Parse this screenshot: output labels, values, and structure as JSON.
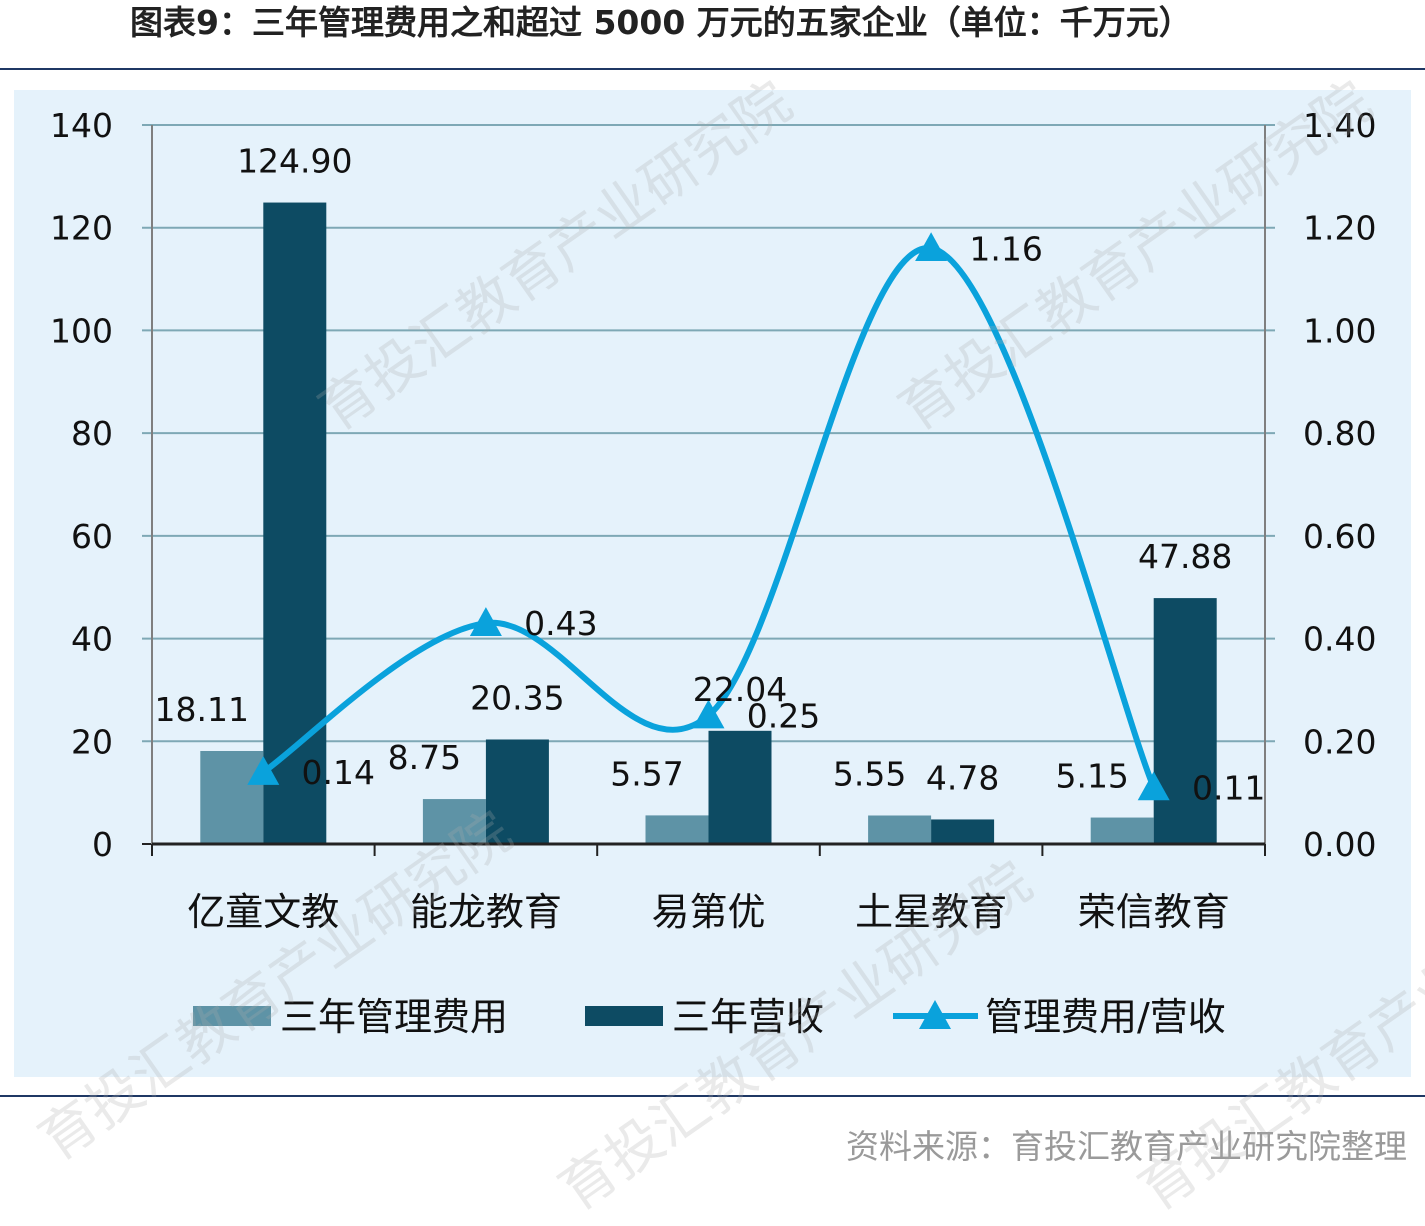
{
  "title": "图表9：三年管理费用之和超过 5000 万元的五家企业（单位：千万元）",
  "source": "资料来源：育投汇教育产业研究院整理",
  "watermark": "育投汇教育产业研究院",
  "colors": {
    "background": "#e5f2fb",
    "grid": "#7ea8b5",
    "bar_fee": "#5e93a6",
    "bar_revenue": "#0d4b63",
    "line_ratio": "#0aa2dc",
    "text": "#111111"
  },
  "chart_data": {
    "type": "bar",
    "categories": [
      "亿童文教",
      "能龙教育",
      "易第优",
      "土星教育",
      "荣信教育"
    ],
    "series": [
      {
        "name": "三年管理费用",
        "type": "bar",
        "axis": "left",
        "values": [
          18.11,
          8.75,
          5.57,
          5.55,
          5.15
        ],
        "labels": [
          "18.11",
          "8.75",
          "5.57",
          "5.55",
          "5.15"
        ]
      },
      {
        "name": "三年营收",
        "type": "bar",
        "axis": "left",
        "values": [
          124.9,
          20.35,
          22.04,
          4.78,
          47.88
        ],
        "labels": [
          "124.90",
          "20.35",
          "22.04",
          "4.78",
          "47.88"
        ]
      },
      {
        "name": "管理费用/营收",
        "type": "line",
        "axis": "right",
        "marker": "triangle",
        "values": [
          0.14,
          0.43,
          0.25,
          1.16,
          0.11
        ],
        "labels": [
          "0.14",
          "0.43",
          "0.25",
          "1.16",
          "0.11"
        ]
      }
    ],
    "y_left": {
      "min": 0,
      "max": 140,
      "ticks": [
        "0",
        "20",
        "40",
        "60",
        "80",
        "100",
        "120",
        "140"
      ]
    },
    "y_right": {
      "min": 0,
      "max": 1.4,
      "ticks": [
        "0.00",
        "0.20",
        "0.40",
        "0.60",
        "0.80",
        "1.00",
        "1.20",
        "1.40"
      ]
    },
    "grid": true,
    "legend_position": "bottom"
  }
}
